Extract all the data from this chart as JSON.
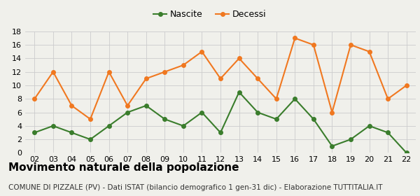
{
  "years": [
    "02",
    "03",
    "04",
    "05",
    "06",
    "07",
    "08",
    "09",
    "10",
    "11",
    "12",
    "13",
    "14",
    "15",
    "16",
    "17",
    "18",
    "19",
    "20",
    "21",
    "22"
  ],
  "nascite": [
    3,
    4,
    3,
    2,
    4,
    6,
    7,
    5,
    4,
    6,
    3,
    9,
    6,
    5,
    8,
    5,
    1,
    2,
    4,
    3,
    0
  ],
  "decessi": [
    8,
    12,
    7,
    5,
    12,
    7,
    11,
    12,
    13,
    15,
    11,
    14,
    11,
    8,
    17,
    16,
    6,
    16,
    15,
    8,
    10
  ],
  "nascite_color": "#3a7d2c",
  "decessi_color": "#f07820",
  "background_color": "#f0f0eb",
  "grid_color": "#cccccc",
  "ylim": [
    0,
    18
  ],
  "yticks": [
    0,
    2,
    4,
    6,
    8,
    10,
    12,
    14,
    16,
    18
  ],
  "title": "Movimento naturale della popolazione",
  "subtitle": "COMUNE DI PIZZALE (PV) - Dati ISTAT (bilancio demografico 1 gen-31 dic) - Elaborazione TUTTITALIA.IT",
  "legend_nascite": "Nascite",
  "legend_decessi": "Decessi",
  "title_fontsize": 11,
  "subtitle_fontsize": 7.5,
  "tick_fontsize": 8,
  "legend_fontsize": 9,
  "marker": "o",
  "markersize": 4,
  "linewidth": 1.5
}
